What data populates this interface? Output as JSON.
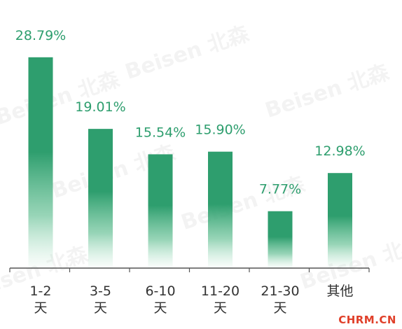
{
  "chart_data": {
    "type": "bar",
    "categories": [
      [
        "1-2",
        "天"
      ],
      [
        "3-5",
        "天"
      ],
      [
        "6-10",
        "天"
      ],
      [
        "11-20",
        "天"
      ],
      [
        "21-30",
        "天"
      ],
      [
        "其他"
      ]
    ],
    "values": [
      28.79,
      19.01,
      15.54,
      15.9,
      7.77,
      12.98
    ],
    "value_labels": [
      "28.79%",
      "19.01%",
      "15.54%",
      "15.90%",
      "7.77%",
      "12.98%"
    ],
    "unit": "%",
    "ylim": [
      0,
      32.5
    ],
    "grid": false,
    "legend": "none",
    "bar_color": "#2e9e6e",
    "label_color": "#2e9e6e"
  },
  "watermark": {
    "text": "Beisen 北森"
  },
  "credit": {
    "text": "CHRM.CN",
    "color": "#e0402a"
  }
}
